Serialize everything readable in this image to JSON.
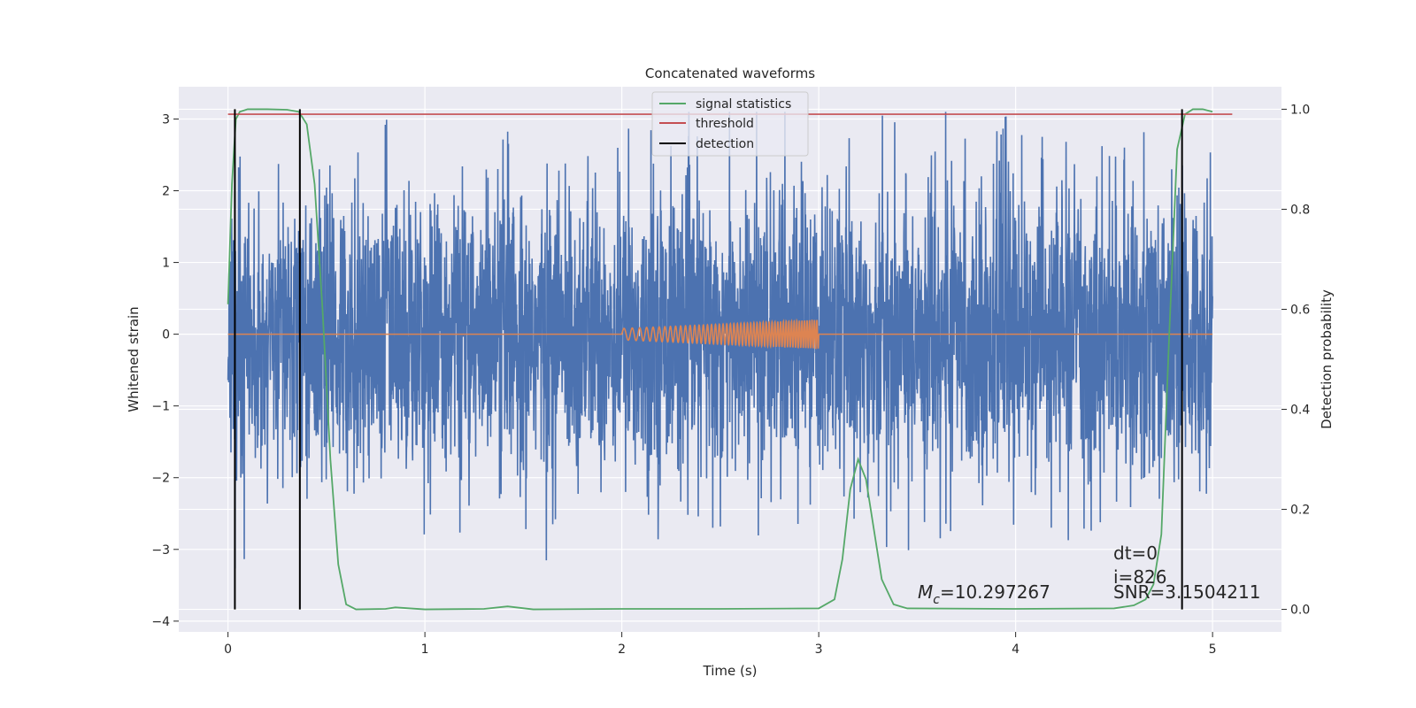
{
  "chart_data": {
    "type": "line",
    "title": "Concatenated waveforms",
    "xlabel": "Time (s)",
    "ylabel": "Whitened strain",
    "ylabel_right": "Detection probability",
    "xlim": [
      -0.25,
      5.35
    ],
    "ylim": [
      -4.15,
      3.45
    ],
    "ylim_right": [
      -0.045,
      1.045
    ],
    "x_ticks": [
      "0",
      "1",
      "2",
      "3",
      "4",
      "5"
    ],
    "y_ticks": [
      "3",
      "2",
      "1",
      "0",
      "−1",
      "−2",
      "−3",
      "−4"
    ],
    "y_ticks_right": [
      "1.0",
      "0.8",
      "0.6",
      "0.4",
      "0.2",
      "0.0"
    ],
    "grid": true,
    "legend_position": "top-center",
    "series": [
      {
        "name": "",
        "axis": "left",
        "color": "#4c72b0",
        "description_values": "noisy whitened strain, roughly between -3.8 and 3.1 over 0-5 s",
        "x_range": [
          0,
          5
        ],
        "amplitude_typical": 1.4,
        "spike_max": 3.1,
        "spike_min": -3.8
      },
      {
        "name": "",
        "axis": "left",
        "color": "#dd8452",
        "x_range": [
          0,
          5
        ],
        "chirp_start": 2.0,
        "chirp_end": 3.0,
        "chirp_amplitude_start": 0.08,
        "chirp_amplitude_end": 0.2
      },
      {
        "name": "signal statistics",
        "axis": "right",
        "color": "#55a868",
        "x": [
          0.0,
          0.02,
          0.04,
          0.06,
          0.1,
          0.2,
          0.3,
          0.36,
          0.4,
          0.44,
          0.48,
          0.52,
          0.56,
          0.6,
          0.65,
          0.8,
          0.85,
          1.0,
          1.3,
          1.42,
          1.55,
          2.0,
          2.5,
          3.0,
          3.08,
          3.12,
          3.16,
          3.2,
          3.24,
          3.28,
          3.32,
          3.38,
          3.45,
          4.0,
          4.5,
          4.6,
          4.66,
          4.7,
          4.74,
          4.78,
          4.82,
          4.86,
          4.9,
          4.95,
          5.0
        ],
        "y": [
          0.61,
          0.85,
          0.98,
          0.995,
          1.0,
          1.0,
          0.999,
          0.995,
          0.97,
          0.85,
          0.6,
          0.3,
          0.09,
          0.01,
          0.0,
          0.001,
          0.004,
          0.0,
          0.001,
          0.006,
          0.0,
          0.001,
          0.001,
          0.002,
          0.02,
          0.1,
          0.24,
          0.3,
          0.26,
          0.16,
          0.06,
          0.01,
          0.002,
          0.001,
          0.002,
          0.008,
          0.02,
          0.05,
          0.15,
          0.55,
          0.92,
          0.99,
          1.0,
          1.0,
          0.995
        ]
      },
      {
        "name": "threshold",
        "axis": "right",
        "color": "#c44e52",
        "x": [
          0.0,
          5.1
        ],
        "y": [
          0.99,
          0.99
        ]
      },
      {
        "name": "detection",
        "axis": "right",
        "color": "#000000",
        "vlines_x": [
          0.035,
          0.365,
          4.845
        ],
        "y_range": [
          0.0,
          1.0
        ]
      }
    ],
    "legend": [
      "signal statistics",
      "threshold",
      "detection"
    ],
    "annotations": {
      "mc": "=10.297267",
      "dt": "dt=0",
      "i": "i=826",
      "snr": "SNR=3.1504211"
    }
  }
}
